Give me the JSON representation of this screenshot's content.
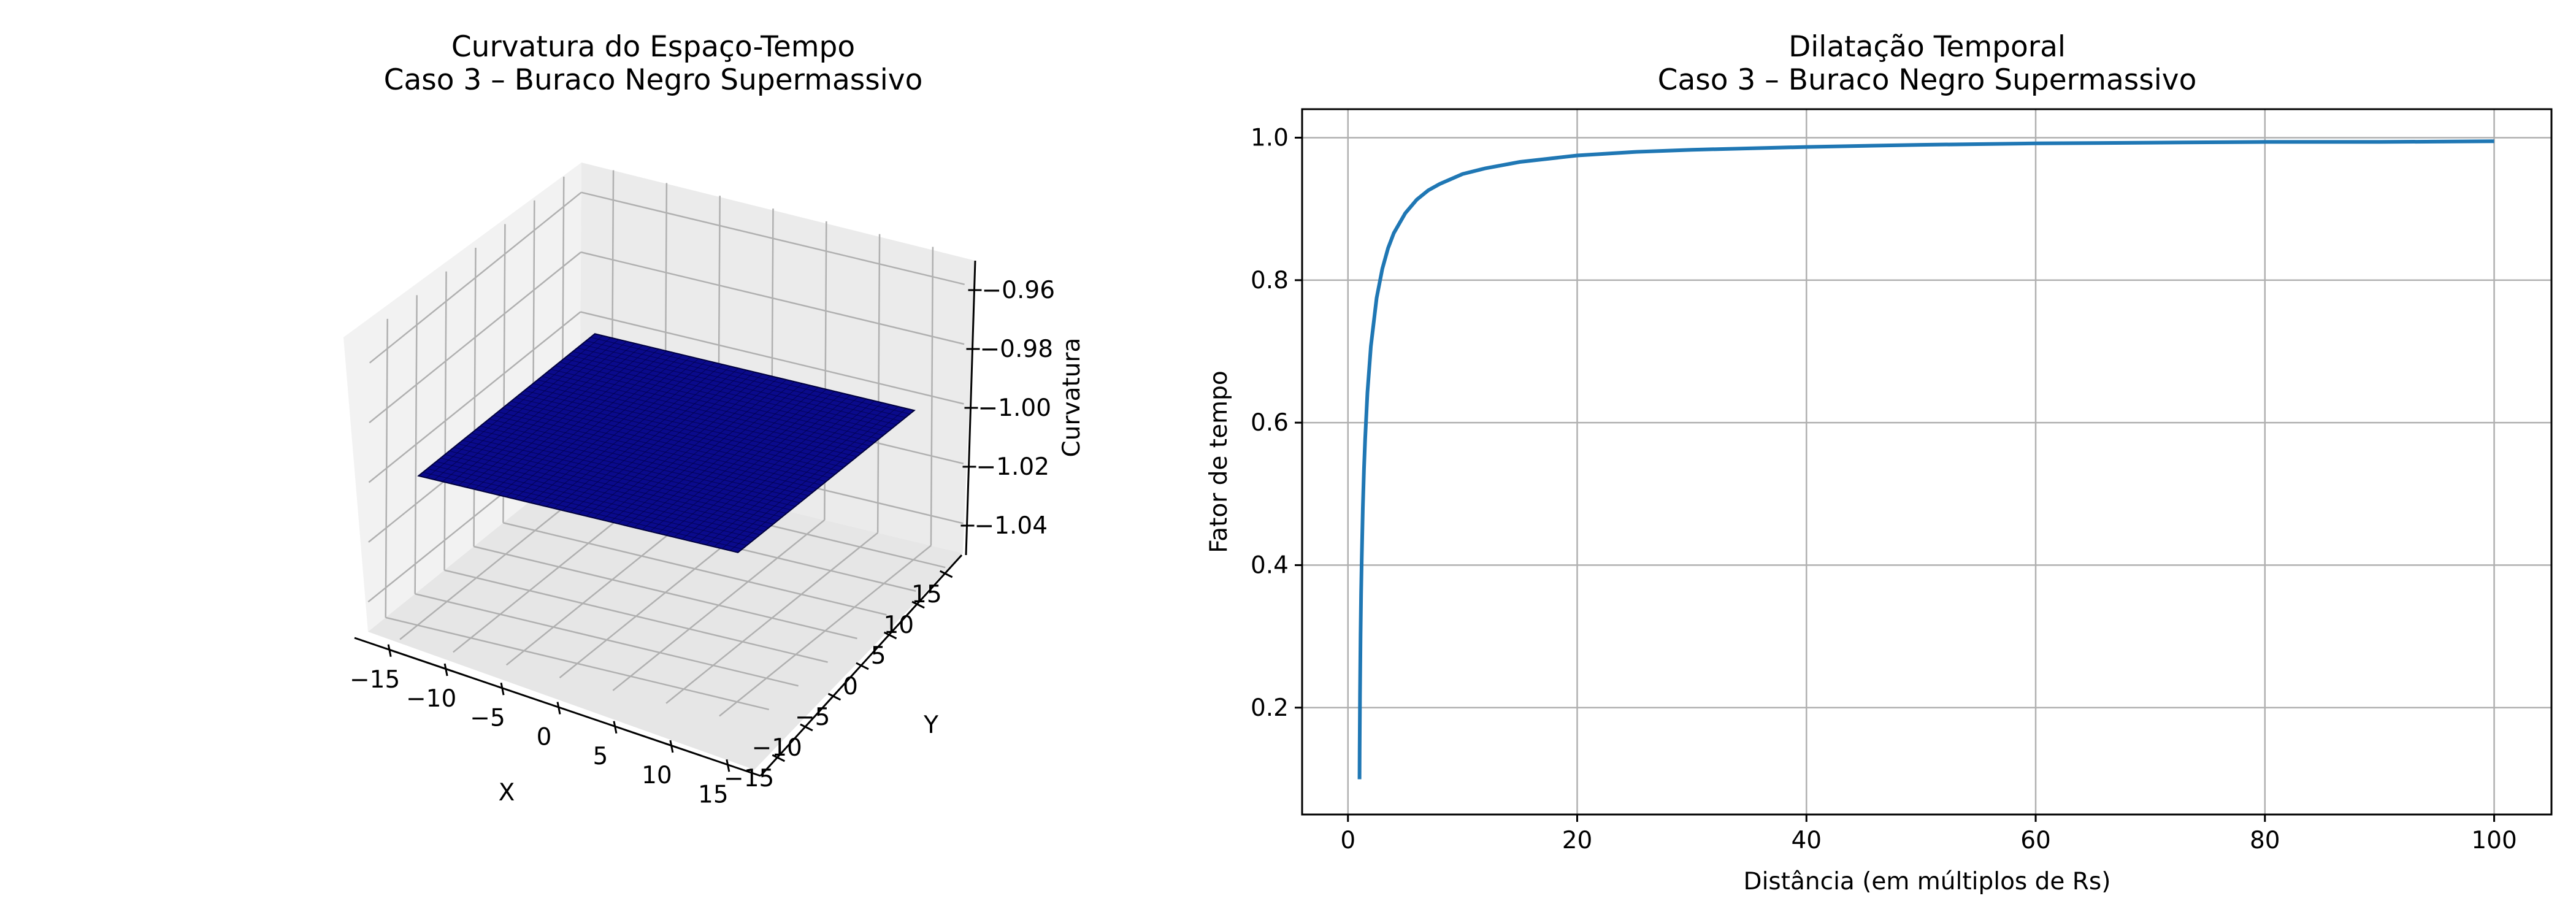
{
  "colors": {
    "surface": "#0a0a8c",
    "surface_edge": "#00003c",
    "line": "#1f77b4",
    "grid": "#b0b0b0",
    "pane": "#f2f2f2"
  },
  "chart_data": [
    {
      "type": "surface",
      "title": "Curvatura do Espaço-Tempo",
      "subtitle": "Caso 3 – Buraco Negro Supermassivo",
      "xlabel": "X",
      "ylabel": "Y",
      "zlabel": "Curvatura",
      "xlim": [
        -18,
        18
      ],
      "ylim": [
        -18,
        18
      ],
      "zlim": [
        -1.05,
        -0.95
      ],
      "x_ticks": [
        -15,
        -10,
        -5,
        0,
        5,
        10,
        15
      ],
      "x_tick_labels": [
        "−15",
        "−10",
        "−5",
        "0",
        "5",
        "10",
        "15"
      ],
      "y_ticks": [
        -15,
        -10,
        -5,
        0,
        5,
        10,
        15
      ],
      "y_tick_labels": [
        "−15",
        "−10",
        "−5",
        "0",
        "5",
        "10",
        "15"
      ],
      "z_ticks": [
        -0.96,
        -0.98,
        -1.0,
        -1.02,
        -1.04
      ],
      "z_tick_labels": [
        "−0.96",
        "−0.98",
        "−1.00",
        "−1.02",
        "−1.04"
      ],
      "surface_extent": {
        "x": [
          -15,
          15
        ],
        "y": [
          -15,
          15
        ]
      },
      "surface_z": -1.0,
      "grid": true
    },
    {
      "type": "line",
      "title": "Dilatação Temporal",
      "subtitle": "Caso 3 – Buraco Negro Supermassivo",
      "xlabel": "Distância (em múltiplos de Rs)",
      "ylabel": "Fator de tempo",
      "xlim": [
        -4,
        105
      ],
      "ylim": [
        0.05,
        1.04
      ],
      "x_ticks": [
        0,
        20,
        40,
        60,
        80,
        100
      ],
      "x_tick_labels": [
        "0",
        "20",
        "40",
        "60",
        "80",
        "100"
      ],
      "y_ticks": [
        0.2,
        0.4,
        0.6,
        0.8,
        1.0
      ],
      "y_tick_labels": [
        "0.2",
        "0.4",
        "0.6",
        "0.8",
        "1.0"
      ],
      "grid": true,
      "series": [
        {
          "function": "sqrt(1 - 1/r)",
          "x": [
            1.01,
            1.02,
            1.05,
            1.1,
            1.15,
            1.2,
            1.3,
            1.4,
            1.5,
            1.7,
            2,
            2.5,
            3,
            3.5,
            4,
            5,
            6,
            7,
            8,
            10,
            12,
            15,
            20,
            25,
            30,
            40,
            50,
            60,
            70,
            80,
            90,
            100
          ],
          "y": [
            0.0995,
            0.14,
            0.218,
            0.302,
            0.361,
            0.408,
            0.48,
            0.535,
            0.577,
            0.642,
            0.707,
            0.775,
            0.816,
            0.845,
            0.866,
            0.894,
            0.913,
            0.926,
            0.935,
            0.949,
            0.957,
            0.966,
            0.975,
            0.98,
            0.983,
            0.987,
            0.99,
            0.992,
            0.993,
            0.994,
            0.994,
            0.995
          ]
        }
      ]
    }
  ]
}
